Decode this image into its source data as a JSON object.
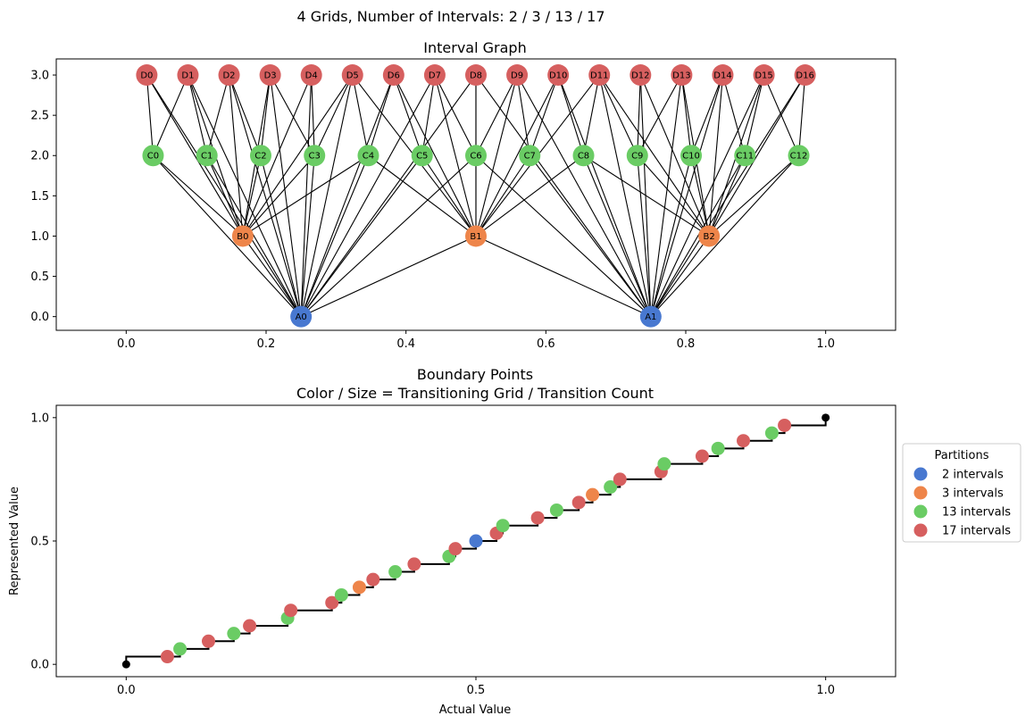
{
  "figure": {
    "suptitle": "4 Grids, Number of Intervals: 2 / 3 / 13 / 17"
  },
  "colors": {
    "grid_2": "#4878d0",
    "grid_3": "#ee854a",
    "grid_13": "#6acc64",
    "grid_17": "#d65f5f",
    "edge": "#000000",
    "endpoint": "#000000"
  },
  "chart_data": [
    {
      "type": "scatter",
      "subtype": "network-graph",
      "title": "Interval Graph",
      "xlim": [
        -0.1,
        1.1
      ],
      "ylim": [
        -0.17,
        3.2
      ],
      "xticks": [
        0.0,
        0.2,
        0.4,
        0.6,
        0.8,
        1.0
      ],
      "xtick_labels": [
        "0.0",
        "0.2",
        "0.4",
        "0.6",
        "0.8",
        "1.0"
      ],
      "yticks": [
        0.0,
        0.5,
        1.0,
        1.5,
        2.0,
        2.5,
        3.0
      ],
      "ytick_labels": [
        "0.0",
        "0.5",
        "1.0",
        "1.5",
        "2.0",
        "2.5",
        "3.0"
      ],
      "levels": [
        {
          "prefix": "A",
          "count": 2,
          "y": 0,
          "color_key": "grid_2"
        },
        {
          "prefix": "B",
          "count": 3,
          "y": 1,
          "color_key": "grid_3"
        },
        {
          "prefix": "C",
          "count": 13,
          "y": 2,
          "color_key": "grid_13"
        },
        {
          "prefix": "D",
          "count": 17,
          "y": 3,
          "color_key": "grid_17"
        }
      ],
      "edge_rule": "nodes on different levels are connected when their intervals [i/n, (i+1)/n] overlap; node x = interval midpoint"
    },
    {
      "type": "line",
      "subtype": "step-with-scatter",
      "title": "Boundary Points",
      "subtitle": "Color / Size = Transitioning Grid / Transition Count",
      "xlabel": "Actual Value",
      "ylabel": "Represented Value",
      "xlim": [
        -0.1,
        1.1
      ],
      "ylim": [
        -0.05,
        1.05
      ],
      "xticks": [
        0.0,
        0.5,
        1.0
      ],
      "xtick_labels": [
        "0.0",
        "0.5",
        "1.0"
      ],
      "yticks": [
        0.0,
        0.5,
        1.0
      ],
      "ytick_labels": [
        "0.0",
        "0.5",
        "1.0"
      ],
      "series": [
        {
          "name": "2 intervals",
          "n": 2,
          "color_key": "grid_2"
        },
        {
          "name": "3 intervals",
          "n": 3,
          "color_key": "grid_3"
        },
        {
          "name": "13 intervals",
          "n": 13,
          "color_key": "grid_13"
        },
        {
          "name": "17 intervals",
          "n": 17,
          "color_key": "grid_17"
        }
      ],
      "step_rule": "boundary points x = k/n for each grid; represented value steps by 1/(number of boundaries+1) at each boundary, from (0,0) to (1,1)",
      "endpoints": [
        [
          0,
          0
        ],
        [
          1,
          1
        ]
      ],
      "legend": {
        "title": "Partitions",
        "placement": "center right outside"
      }
    }
  ]
}
